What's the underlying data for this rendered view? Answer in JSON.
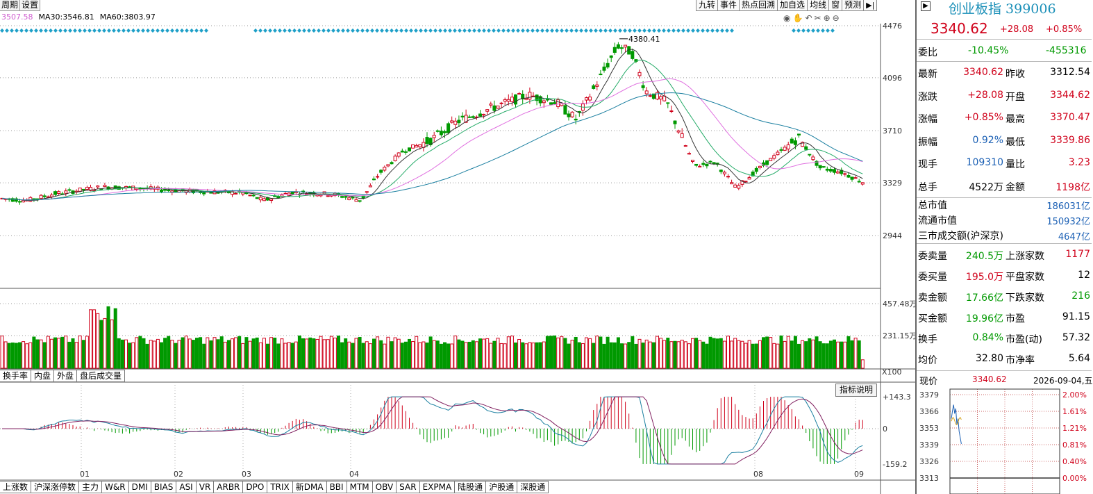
{
  "menu": {
    "items": [
      "周期",
      "设置"
    ]
  },
  "ma_legend": {
    "ma_partial": "3507.58",
    "ma30_label": "MA30:",
    "ma30_value": "3546.81",
    "ma60_label": "MA60:",
    "ma60_value": "3803.97"
  },
  "tool_tabs": [
    "九转",
    "事件",
    "热点回溯",
    "加自选",
    "均线",
    "窗",
    "预测"
  ],
  "price_axis": [
    "4476",
    "4096",
    "3710",
    "3329",
    "2944"
  ],
  "high_marker": "4380.41",
  "volume_axis": [
    "457.48万",
    "231.15万"
  ],
  "volume_unit": "X100",
  "sub_tabs": [
    "换手率",
    "内盘",
    "外盘",
    "盘后成交量"
  ],
  "indicator_help": "指标说明",
  "macd_axis": [
    "+143.3",
    "0",
    "-159.2"
  ],
  "month_labels": [
    "01",
    "02",
    "03",
    "04",
    "08",
    "09"
  ],
  "bottom_tabs": [
    "上涨数",
    "沪深涨停数",
    "主力",
    "W&R",
    "DMI",
    "BIAS",
    "ASI",
    "VR",
    "ARBR",
    "DPO",
    "TRIX",
    "新DMA",
    "BBI",
    "MTM",
    "OBV",
    "SAR",
    "EXPMA",
    "陆股通",
    "沪股通",
    "深股通"
  ],
  "right_panel": {
    "title": "创业板指 399006",
    "price": "3340.62",
    "change": "+28.08",
    "change_pct": "+0.85%",
    "weibi_label": "委比",
    "weibi_pct": "-10.45%",
    "weibi_val": "-455316",
    "quote_rows": [
      {
        "l1": "最新",
        "v1": "3340.62",
        "l2": "昨收",
        "v2": "3312.54"
      },
      {
        "l1": "涨跌",
        "v1": "+28.08",
        "l2": "开盘",
        "v2": "3344.62"
      },
      {
        "l1": "涨幅",
        "v1": "+0.85%",
        "l2": "最高",
        "v2": "3370.47"
      },
      {
        "l1": "振幅",
        "v1": "0.92%",
        "l2": "最低",
        "v2": "3339.86"
      },
      {
        "l1": "现手",
        "v1": "109310",
        "l2": "量比",
        "v2": "3.23"
      },
      {
        "l1": "总手",
        "v1": "4522万",
        "l2": "金额",
        "v2": "1198亿"
      }
    ],
    "market_rows": [
      {
        "l": "总市值",
        "v": "186031亿"
      },
      {
        "l": "流通市值",
        "v": "150932亿"
      },
      {
        "l": "三市成交额(沪深京)",
        "v": "4647亿"
      }
    ],
    "order_rows": [
      {
        "l1": "委卖量",
        "v1": "240.5万",
        "l2": "上涨家数",
        "v2": "1177"
      },
      {
        "l1": "委买量",
        "v1": "195.0万",
        "l2": "平盘家数",
        "v2": "12"
      },
      {
        "l1": "卖金额",
        "v1": "17.66亿",
        "l2": "下跌家数",
        "v2": "216"
      },
      {
        "l1": "买金额",
        "v1": "19.96亿",
        "l2": "市盈",
        "v2": "91.15"
      },
      {
        "l1": "换手",
        "v1": "0.84%",
        "l2": "市盈(动)",
        "v2": "57.32"
      },
      {
        "l1": "均价",
        "v1": "32.80",
        "l2": "市净率",
        "v2": "5.64"
      }
    ],
    "mini": {
      "label": "现价",
      "price": "3340.62",
      "date": "2026-09-04,五",
      "left_axis": [
        "3379",
        "3366",
        "3353",
        "3339",
        "3326",
        "3313"
      ],
      "right_axis": [
        "2.00%",
        "1.61%",
        "1.21%",
        "0.81%",
        "0.40%",
        "0.00%"
      ]
    }
  },
  "colors": {
    "up": "#d0021b",
    "down": "#009900",
    "accent": "#1a8fb8",
    "diamond": "#1fa0c8"
  }
}
